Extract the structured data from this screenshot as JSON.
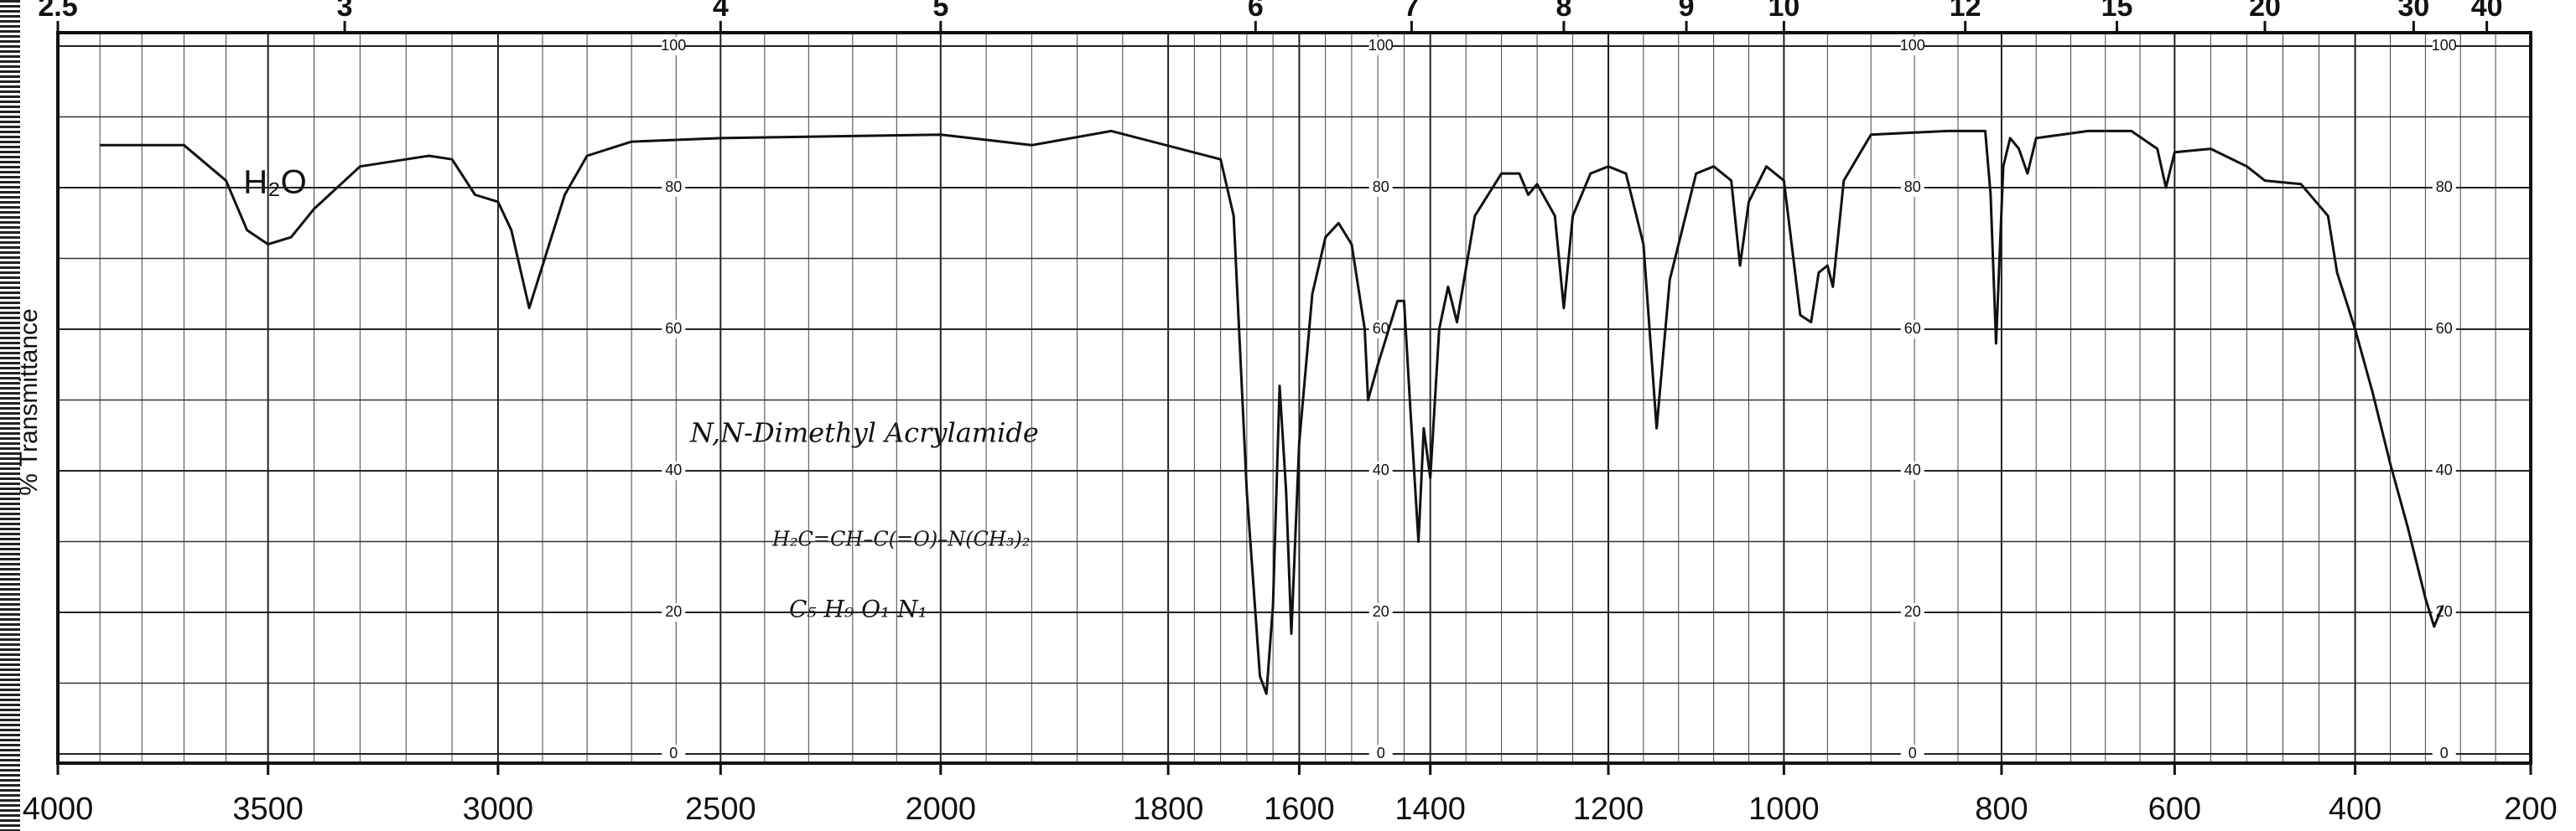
{
  "chart_data": {
    "type": "line",
    "ylabel": "% Transmittance",
    "xlim": [
      4000,
      200
    ],
    "xticks": [
      4000,
      3500,
      3000,
      2500,
      2000,
      1800,
      1600,
      1400,
      1200,
      1000,
      800,
      600,
      400,
      200
    ],
    "x2ticks": [
      2.5,
      3,
      4,
      5,
      6,
      7,
      8,
      9,
      10,
      12,
      15,
      20,
      30,
      40
    ],
    "ylim": [
      -1.3,
      101.9
    ],
    "yticks": [
      0,
      20,
      40,
      60,
      80,
      100
    ],
    "grid": true,
    "color": "#111111",
    "annotations": [
      "H₂O",
      "N,N-Dimethyl Acrylamide",
      "H₂C=CH–C(=O)–N(CH₃)₂",
      "C₅ H₉ O₁ N₁"
    ],
    "x": [
      3900,
      3700,
      3600,
      3550,
      3500,
      3450,
      3400,
      3300,
      3200,
      3150,
      3100,
      3050,
      3000,
      2970,
      2930,
      2900,
      2850,
      2800,
      2700,
      2500,
      2000,
      1920,
      1850,
      1720,
      1700,
      1680,
      1660,
      1650,
      1640,
      1630,
      1620,
      1612,
      1600,
      1580,
      1560,
      1540,
      1520,
      1500,
      1495,
      1480,
      1450,
      1440,
      1430,
      1418,
      1410,
      1400,
      1390,
      1380,
      1370,
      1350,
      1320,
      1300,
      1290,
      1280,
      1260,
      1250,
      1240,
      1220,
      1200,
      1180,
      1160,
      1145,
      1130,
      1100,
      1080,
      1060,
      1050,
      1040,
      1020,
      1000,
      985,
      975,
      968,
      960,
      955,
      945,
      920,
      850,
      815,
      810,
      805,
      798,
      790,
      780,
      770,
      760,
      700,
      650,
      620,
      610,
      600,
      560,
      520,
      500,
      460,
      430,
      420,
      400,
      380,
      360,
      340,
      320,
      310,
      300
    ],
    "values": [
      86,
      86,
      81,
      74,
      72,
      73,
      77,
      83,
      84,
      84.5,
      84,
      79,
      78,
      74,
      63,
      69,
      79,
      84.5,
      86.5,
      87,
      87.5,
      86,
      88,
      84,
      76,
      37,
      11,
      8.5,
      21,
      52,
      37,
      17,
      44,
      65,
      73,
      75,
      72,
      60,
      50,
      55,
      64,
      64,
      48,
      30,
      46,
      39,
      60,
      66,
      61,
      76,
      82,
      82,
      79,
      80.5,
      76,
      63,
      76,
      82,
      83,
      82,
      72,
      46,
      67,
      82,
      83,
      81,
      69,
      78,
      83,
      81,
      62,
      61,
      68,
      69,
      66,
      81,
      87.5,
      88,
      88,
      79,
      58,
      83,
      87,
      85.5,
      82,
      87,
      88,
      88,
      85.5,
      80,
      85,
      85.5,
      83,
      81,
      80.5,
      76,
      68,
      60,
      51,
      41,
      32,
      22,
      18,
      21
    ]
  }
}
